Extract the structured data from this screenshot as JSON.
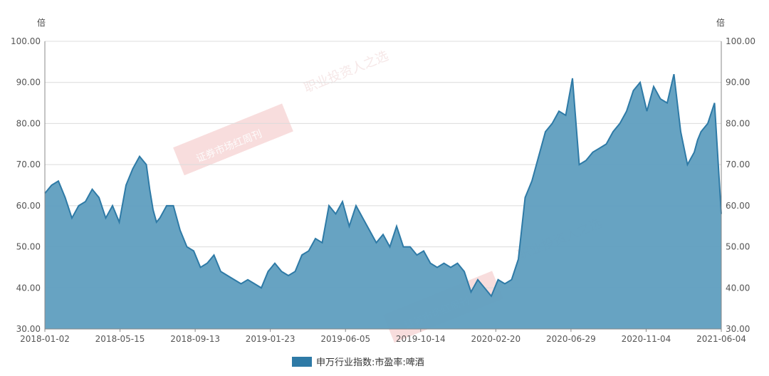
{
  "chart_data": {
    "type": "area",
    "y_unit_left": "倍",
    "y_unit_right": "倍",
    "ylim": [
      30,
      100
    ],
    "y_ticks": [
      "30.00",
      "40.00",
      "50.00",
      "60.00",
      "70.00",
      "80.00",
      "90.00",
      "100.00"
    ],
    "x_ticks": [
      "2018-01-02",
      "2018-05-15",
      "2018-09-13",
      "2019-01-23",
      "2019-06-05",
      "2019-10-14",
      "2020-02-20",
      "2020-06-29",
      "2020-11-04",
      "2021-06-04"
    ],
    "grid": true,
    "legend_position": "bottom-center",
    "series": [
      {
        "name": "申万行业指数:市盈率:啤酒",
        "color": "#2e7aa6",
        "fill": "#5f9ebf",
        "x": [
          0,
          0.01,
          0.02,
          0.03,
          0.04,
          0.05,
          0.06,
          0.07,
          0.08,
          0.09,
          0.1,
          0.11,
          0.12,
          0.13,
          0.14,
          0.15,
          0.155,
          0.16,
          0.165,
          0.17,
          0.18,
          0.19,
          0.2,
          0.21,
          0.22,
          0.23,
          0.24,
          0.25,
          0.26,
          0.27,
          0.28,
          0.29,
          0.3,
          0.31,
          0.32,
          0.33,
          0.34,
          0.35,
          0.36,
          0.37,
          0.38,
          0.39,
          0.4,
          0.41,
          0.42,
          0.43,
          0.44,
          0.45,
          0.46,
          0.47,
          0.48,
          0.49,
          0.5,
          0.51,
          0.52,
          0.53,
          0.54,
          0.55,
          0.56,
          0.57,
          0.58,
          0.59,
          0.6,
          0.61,
          0.62,
          0.63,
          0.64,
          0.65,
          0.66,
          0.67,
          0.68,
          0.69,
          0.7,
          0.71,
          0.72,
          0.73,
          0.74,
          0.75,
          0.76,
          0.77,
          0.78,
          0.79,
          0.8,
          0.81,
          0.82,
          0.83,
          0.84,
          0.85,
          0.86,
          0.87,
          0.88,
          0.89,
          0.9,
          0.91,
          0.92,
          0.93,
          0.94,
          0.95,
          0.96,
          0.965,
          0.97,
          0.98,
          0.99,
          1.0
        ],
        "values": [
          63,
          65,
          66,
          62,
          57,
          60,
          61,
          64,
          62,
          57,
          60,
          56,
          65,
          69,
          72,
          70,
          64,
          59,
          56,
          57,
          60,
          60,
          54,
          50,
          49,
          45,
          46,
          48,
          44,
          43,
          42,
          41,
          42,
          41,
          40,
          44,
          46,
          44,
          43,
          44,
          48,
          49,
          52,
          51,
          60,
          58,
          61,
          55,
          60,
          57,
          54,
          51,
          53,
          50,
          55,
          50,
          50,
          48,
          49,
          46,
          45,
          46,
          45,
          46,
          44,
          39,
          42,
          40,
          38,
          42,
          41,
          42,
          47,
          62,
          66,
          72,
          78,
          80,
          83,
          82,
          91,
          70,
          71,
          73,
          74,
          75,
          78,
          80,
          83,
          88,
          90,
          83,
          89,
          86,
          85,
          92,
          78,
          70,
          73,
          76,
          78,
          80,
          85,
          58
        ]
      }
    ]
  },
  "watermarks": [
    "职业投资人之选",
    "证券市场红周刊"
  ]
}
